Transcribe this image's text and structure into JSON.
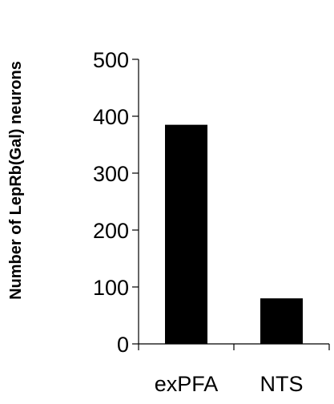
{
  "chart_data": {
    "type": "bar",
    "categories": [
      "exPFA",
      "NTS"
    ],
    "values": [
      385,
      80
    ],
    "title": "",
    "xlabel": "",
    "ylabel": "Number of LepRb(Gal) neurons",
    "ylim": [
      0,
      500
    ],
    "yticks": [
      "0",
      "100",
      "200",
      "300",
      "400",
      "500"
    ],
    "grid": false,
    "legend": "none",
    "bar_color": "#000000"
  }
}
